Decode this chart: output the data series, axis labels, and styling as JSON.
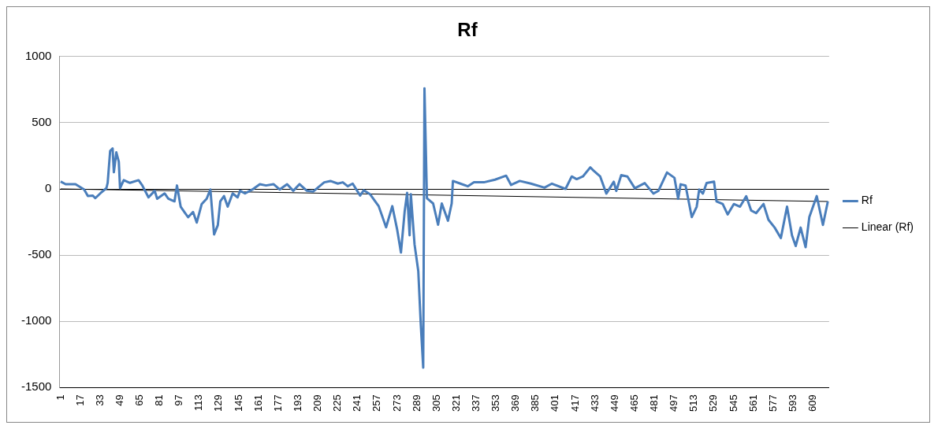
{
  "chart_data": {
    "type": "line",
    "title": "Rf",
    "xlim": [
      0,
      622
    ],
    "xticks": [
      1,
      17,
      33,
      49,
      65,
      81,
      97,
      113,
      129,
      145,
      161,
      177,
      193,
      209,
      225,
      241,
      257,
      273,
      289,
      305,
      321,
      337,
      353,
      369,
      385,
      401,
      417,
      433,
      449,
      465,
      481,
      497,
      513,
      529,
      545,
      561,
      577,
      593,
      609
    ],
    "ylim": [
      -1500,
      1000
    ],
    "yticks": [
      -1500,
      -1000,
      -500,
      0,
      500,
      1000
    ],
    "grid": "y",
    "legend": "right",
    "marker": "none",
    "series": [
      {
        "name": "Rf",
        "color": "#4a7ebb",
        "x": [
          1,
          5,
          13,
          20,
          23,
          27,
          29,
          33,
          38,
          39,
          41,
          43,
          44,
          46,
          48,
          49,
          52,
          57,
          64,
          67,
          72,
          77,
          79,
          85,
          88,
          93,
          95,
          98,
          101,
          104,
          108,
          111,
          115,
          119,
          122,
          125,
          128,
          130,
          133,
          136,
          140,
          144,
          146,
          150,
          156,
          162,
          167,
          173,
          178,
          184,
          189,
          194,
          200,
          205,
          214,
          219,
          225,
          229,
          233,
          237,
          243,
          246,
          251,
          258,
          264,
          269,
          273,
          276,
          279,
          281,
          283,
          284,
          287,
          290,
          292,
          294,
          295,
          297,
          302,
          306,
          309,
          314,
          317,
          318,
          324,
          330,
          335,
          343,
          352,
          361,
          365,
          372,
          381,
          392,
          398,
          409,
          414,
          418,
          423,
          429,
          431,
          437,
          442,
          448,
          450,
          454,
          459,
          465,
          473,
          480,
          484,
          491,
          497,
          500,
          502,
          506,
          511,
          515,
          517,
          520,
          523,
          529,
          531,
          536,
          540,
          545,
          550,
          555,
          559,
          563,
          569,
          573,
          578,
          583,
          588,
          592,
          595,
          599,
          603,
          606,
          612,
          617,
          621
        ],
        "values": [
          56,
          36,
          36,
          -4,
          -54,
          -50,
          -70,
          -34,
          6,
          46,
          286,
          306,
          126,
          276,
          206,
          6,
          66,
          46,
          66,
          26,
          -64,
          -14,
          -74,
          -34,
          -74,
          -94,
          26,
          -134,
          -174,
          -214,
          -174,
          -254,
          -114,
          -74,
          -4,
          -344,
          -274,
          -94,
          -54,
          -134,
          -34,
          -64,
          -14,
          -34,
          -4,
          36,
          26,
          36,
          -4,
          36,
          -14,
          36,
          -14,
          -20,
          50,
          60,
          40,
          50,
          20,
          40,
          -50,
          -10,
          -40,
          -130,
          -290,
          -130,
          -310,
          -480,
          -170,
          -30,
          -350,
          -40,
          -420,
          -620,
          -1020,
          -1350,
          760,
          -70,
          -110,
          -270,
          -110,
          -240,
          -110,
          60,
          40,
          20,
          50,
          50,
          70,
          100,
          30,
          60,
          40,
          10,
          40,
          0,
          94,
          74,
          94,
          163,
          144,
          94,
          -35,
          54,
          -15,
          104,
          94,
          5,
          44,
          -35,
          -15,
          124,
          84,
          -74,
          35,
          25,
          -213,
          -134,
          -5,
          -35,
          45,
          55,
          -94,
          -114,
          -193,
          -114,
          -134,
          -55,
          -163,
          -183,
          -114,
          -233,
          -292,
          -371,
          -134,
          -351,
          -431,
          -292,
          -440,
          -213,
          -54,
          -272,
          -94
        ]
      },
      {
        "name": "Linear (Rf)",
        "type": "line",
        "color": "#000000",
        "x": [
          1,
          621
        ],
        "values": [
          0,
          -95
        ]
      }
    ]
  }
}
